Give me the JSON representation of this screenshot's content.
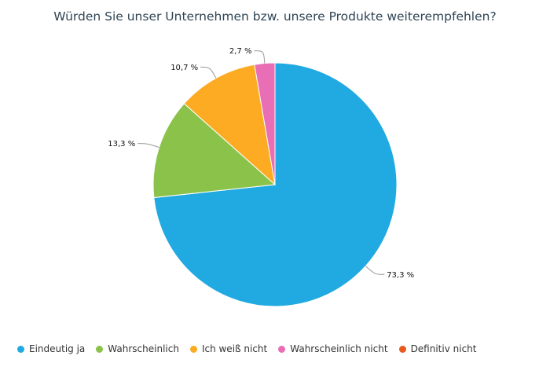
{
  "chart_data": {
    "type": "pie",
    "title": "Würden Sie unser Unternehmen bzw. unsere Produkte weiterempfehlen?",
    "categories": [
      "Eindeutig ja",
      "Wahrscheinlich",
      "Ich weiß nicht",
      "Wahrscheinlich nicht",
      "Definitiv nicht"
    ],
    "values": [
      73.3,
      13.3,
      10.7,
      2.7,
      0
    ],
    "value_labels": [
      "73,3 %",
      "13,3 %",
      "10,7 %",
      "2,7 %",
      ""
    ],
    "colors": [
      "#21a9e1",
      "#8bc34a",
      "#fcab23",
      "#e86fb5",
      "#e65a1e"
    ],
    "legend_position": "bottom-left",
    "start_angle_deg": 0,
    "direction": "clockwise"
  }
}
